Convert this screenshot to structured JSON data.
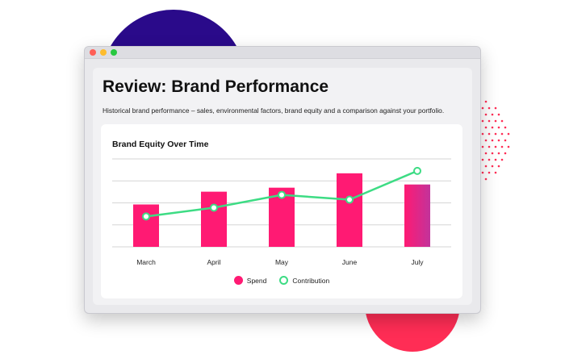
{
  "window": {
    "title": "Review: Brand Performance",
    "subtitle": "Historical brand performance – sales, environmental factors, brand equity and a comparison against your portfolio.",
    "controls": [
      {
        "name": "close",
        "color": "#ff5f57"
      },
      {
        "name": "minimize",
        "color": "#febc2e"
      },
      {
        "name": "maximize",
        "color": "#28c840"
      }
    ]
  },
  "colors": {
    "spend": "#ff1a73",
    "spend_last": "#c2339b",
    "contribution": "#3ddc84",
    "deco_purple": "#2a0a8a",
    "deco_red": "#ff2d55"
  },
  "chart_data": {
    "type": "bar",
    "title": "Brand Equity Over Time",
    "categories": [
      "March",
      "April",
      "May",
      "June",
      "July"
    ],
    "series": [
      {
        "name": "Spend",
        "type": "bar",
        "values": [
          53,
          69,
          74,
          92,
          78
        ]
      },
      {
        "name": "Contribution",
        "type": "line",
        "values": [
          38,
          49,
          65,
          59,
          95
        ]
      }
    ],
    "ylim": [
      0,
      110
    ],
    "grid": true,
    "legend": "bottom-center"
  }
}
